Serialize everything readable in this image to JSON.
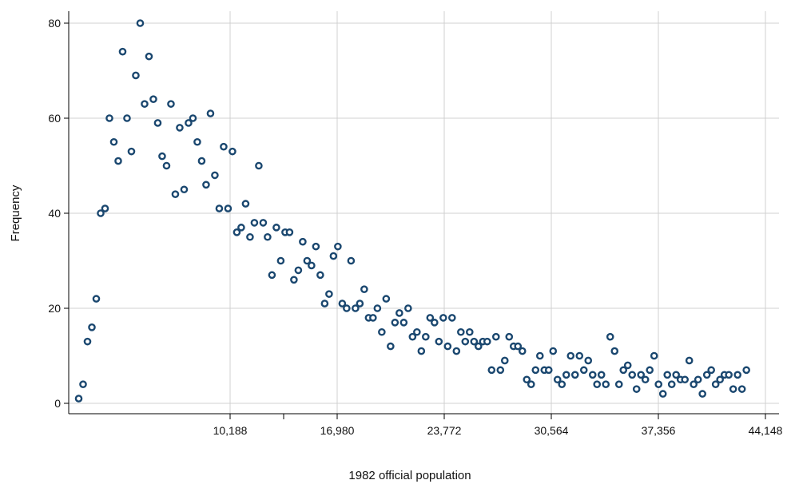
{
  "chart_data": {
    "type": "scatter",
    "title": "",
    "xlabel": "1982 official population",
    "ylabel": "Frequency",
    "xlim": [
      0,
      44800
    ],
    "ylim": [
      0,
      80
    ],
    "x_ticks": [
      {
        "value": 10188,
        "label": "10,188"
      },
      {
        "value": 16980,
        "label": "16,980"
      },
      {
        "value": 23772,
        "label": "23,772"
      },
      {
        "value": 30564,
        "label": "30,564"
      },
      {
        "value": 37356,
        "label": "37,356"
      },
      {
        "value": 44148,
        "label": "44,148"
      }
    ],
    "x_minor_ticks": [
      13584,
      13584
    ],
    "y_ticks": [
      {
        "value": 0,
        "label": "0"
      },
      {
        "value": 20,
        "label": "20"
      },
      {
        "value": 40,
        "label": "40"
      },
      {
        "value": 60,
        "label": "60"
      },
      {
        "value": 80,
        "label": "80"
      }
    ],
    "grid": true,
    "marker": "hollow-circle",
    "colors": {
      "marker": "#1a476f",
      "grid": "#d0d0d0",
      "axis": "#000000"
    },
    "points": [
      {
        "x": 583,
        "y": 1
      },
      {
        "x": 861,
        "y": 4
      },
      {
        "x": 1140,
        "y": 13
      },
      {
        "x": 1419,
        "y": 16
      },
      {
        "x": 1697,
        "y": 22
      },
      {
        "x": 1976,
        "y": 40
      },
      {
        "x": 2255,
        "y": 41
      },
      {
        "x": 2533,
        "y": 60
      },
      {
        "x": 2812,
        "y": 55
      },
      {
        "x": 3091,
        "y": 51
      },
      {
        "x": 3369,
        "y": 74
      },
      {
        "x": 3648,
        "y": 60
      },
      {
        "x": 3927,
        "y": 53
      },
      {
        "x": 4205,
        "y": 69
      },
      {
        "x": 4484,
        "y": 80
      },
      {
        "x": 4763,
        "y": 63
      },
      {
        "x": 5041,
        "y": 73
      },
      {
        "x": 5320,
        "y": 64
      },
      {
        "x": 5599,
        "y": 59
      },
      {
        "x": 5877,
        "y": 52
      },
      {
        "x": 6156,
        "y": 50
      },
      {
        "x": 6435,
        "y": 63
      },
      {
        "x": 6713,
        "y": 44
      },
      {
        "x": 6992,
        "y": 58
      },
      {
        "x": 7271,
        "y": 45
      },
      {
        "x": 7549,
        "y": 59
      },
      {
        "x": 7828,
        "y": 60
      },
      {
        "x": 8107,
        "y": 55
      },
      {
        "x": 8385,
        "y": 51
      },
      {
        "x": 8664,
        "y": 46
      },
      {
        "x": 8943,
        "y": 61
      },
      {
        "x": 9221,
        "y": 48
      },
      {
        "x": 9500,
        "y": 41
      },
      {
        "x": 9779,
        "y": 54
      },
      {
        "x": 10057,
        "y": 41
      },
      {
        "x": 10336,
        "y": 53
      },
      {
        "x": 10615,
        "y": 36
      },
      {
        "x": 10893,
        "y": 37
      },
      {
        "x": 11172,
        "y": 42
      },
      {
        "x": 11451,
        "y": 35
      },
      {
        "x": 11729,
        "y": 38
      },
      {
        "x": 12008,
        "y": 50
      },
      {
        "x": 12287,
        "y": 38
      },
      {
        "x": 12565,
        "y": 35
      },
      {
        "x": 12844,
        "y": 27
      },
      {
        "x": 13123,
        "y": 37
      },
      {
        "x": 13401,
        "y": 30
      },
      {
        "x": 13680,
        "y": 36
      },
      {
        "x": 13959,
        "y": 36
      },
      {
        "x": 14237,
        "y": 26
      },
      {
        "x": 14516,
        "y": 28
      },
      {
        "x": 14795,
        "y": 34
      },
      {
        "x": 15073,
        "y": 30
      },
      {
        "x": 15352,
        "y": 29
      },
      {
        "x": 15631,
        "y": 33
      },
      {
        "x": 15909,
        "y": 27
      },
      {
        "x": 16188,
        "y": 21
      },
      {
        "x": 16467,
        "y": 23
      },
      {
        "x": 16745,
        "y": 31
      },
      {
        "x": 17024,
        "y": 33
      },
      {
        "x": 17303,
        "y": 21
      },
      {
        "x": 17581,
        "y": 20
      },
      {
        "x": 17860,
        "y": 30
      },
      {
        "x": 18139,
        "y": 20
      },
      {
        "x": 18417,
        "y": 21
      },
      {
        "x": 18696,
        "y": 24
      },
      {
        "x": 18975,
        "y": 18
      },
      {
        "x": 19253,
        "y": 18
      },
      {
        "x": 19532,
        "y": 20
      },
      {
        "x": 19811,
        "y": 15
      },
      {
        "x": 20089,
        "y": 22
      },
      {
        "x": 20368,
        "y": 12
      },
      {
        "x": 20647,
        "y": 17
      },
      {
        "x": 20925,
        "y": 19
      },
      {
        "x": 21204,
        "y": 17
      },
      {
        "x": 21483,
        "y": 20
      },
      {
        "x": 21761,
        "y": 14
      },
      {
        "x": 22040,
        "y": 15
      },
      {
        "x": 22319,
        "y": 11
      },
      {
        "x": 22597,
        "y": 14
      },
      {
        "x": 22876,
        "y": 18
      },
      {
        "x": 23155,
        "y": 17
      },
      {
        "x": 23433,
        "y": 13
      },
      {
        "x": 23712,
        "y": 18
      },
      {
        "x": 23991,
        "y": 12
      },
      {
        "x": 24269,
        "y": 18
      },
      {
        "x": 24548,
        "y": 11
      },
      {
        "x": 24827,
        "y": 15
      },
      {
        "x": 25105,
        "y": 13
      },
      {
        "x": 25384,
        "y": 15
      },
      {
        "x": 25663,
        "y": 13
      },
      {
        "x": 25941,
        "y": 12
      },
      {
        "x": 26220,
        "y": 13
      },
      {
        "x": 26499,
        "y": 13
      },
      {
        "x": 26777,
        "y": 7
      },
      {
        "x": 27056,
        "y": 14
      },
      {
        "x": 27335,
        "y": 7
      },
      {
        "x": 27613,
        "y": 9
      },
      {
        "x": 27892,
        "y": 14
      },
      {
        "x": 28171,
        "y": 12
      },
      {
        "x": 28449,
        "y": 12
      },
      {
        "x": 28728,
        "y": 11
      },
      {
        "x": 29007,
        "y": 5
      },
      {
        "x": 29285,
        "y": 4
      },
      {
        "x": 29564,
        "y": 7
      },
      {
        "x": 29843,
        "y": 10
      },
      {
        "x": 30121,
        "y": 7
      },
      {
        "x": 30400,
        "y": 7
      },
      {
        "x": 30679,
        "y": 11
      },
      {
        "x": 30957,
        "y": 5
      },
      {
        "x": 31236,
        "y": 4
      },
      {
        "x": 31515,
        "y": 6
      },
      {
        "x": 31793,
        "y": 10
      },
      {
        "x": 32072,
        "y": 6
      },
      {
        "x": 32351,
        "y": 10
      },
      {
        "x": 32629,
        "y": 7
      },
      {
        "x": 32908,
        "y": 9
      },
      {
        "x": 33187,
        "y": 6
      },
      {
        "x": 33465,
        "y": 4
      },
      {
        "x": 33744,
        "y": 6
      },
      {
        "x": 34023,
        "y": 4
      },
      {
        "x": 34301,
        "y": 14
      },
      {
        "x": 34580,
        "y": 11
      },
      {
        "x": 34859,
        "y": 4
      },
      {
        "x": 35137,
        "y": 7
      },
      {
        "x": 35416,
        "y": 8
      },
      {
        "x": 35695,
        "y": 6
      },
      {
        "x": 35973,
        "y": 3
      },
      {
        "x": 36252,
        "y": 6
      },
      {
        "x": 36531,
        "y": 5
      },
      {
        "x": 36809,
        "y": 7
      },
      {
        "x": 37088,
        "y": 10
      },
      {
        "x": 37367,
        "y": 4
      },
      {
        "x": 37645,
        "y": 2
      },
      {
        "x": 37924,
        "y": 6
      },
      {
        "x": 38203,
        "y": 4
      },
      {
        "x": 38481,
        "y": 6
      },
      {
        "x": 38760,
        "y": 5
      },
      {
        "x": 39039,
        "y": 5
      },
      {
        "x": 39317,
        "y": 9
      },
      {
        "x": 39596,
        "y": 4
      },
      {
        "x": 39875,
        "y": 5
      },
      {
        "x": 40153,
        "y": 2
      },
      {
        "x": 40432,
        "y": 6
      },
      {
        "x": 40711,
        "y": 7
      },
      {
        "x": 40989,
        "y": 4
      },
      {
        "x": 41268,
        "y": 5
      },
      {
        "x": 41547,
        "y": 6
      },
      {
        "x": 41825,
        "y": 6
      },
      {
        "x": 42104,
        "y": 3
      },
      {
        "x": 42383,
        "y": 6
      },
      {
        "x": 42661,
        "y": 3
      },
      {
        "x": 42940,
        "y": 7
      }
    ]
  }
}
